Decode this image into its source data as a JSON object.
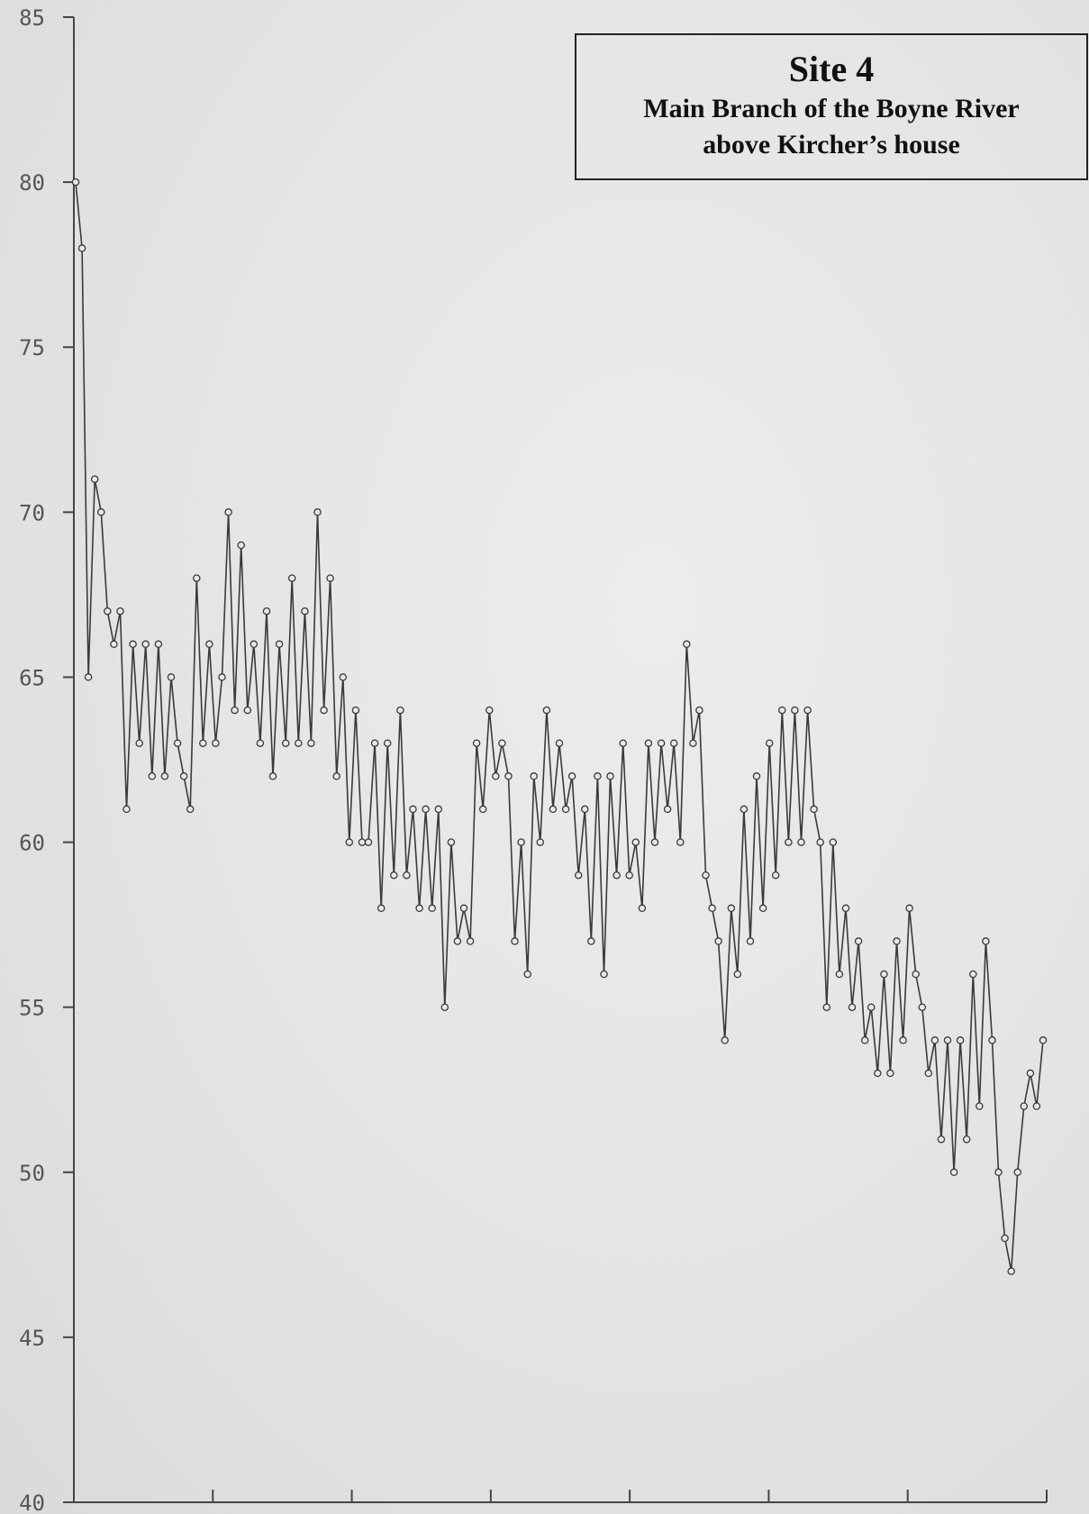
{
  "chart_data": {
    "type": "line",
    "title": "Site 4",
    "subtitle_lines": [
      "Main Branch of the Boyne River",
      "above Kircher’s house"
    ],
    "xlabel": "",
    "ylabel": "",
    "ylim": [
      40,
      85
    ],
    "y_ticks": [
      "85",
      "80",
      "75",
      "70",
      "65",
      "60",
      "55",
      "50",
      "45",
      "40"
    ],
    "x_ticks_count": 7,
    "grid": false,
    "legend": "none",
    "marker": "open-circle",
    "line_color": "#3a3a3a",
    "series": [
      {
        "values": [
          80,
          78,
          65,
          71,
          70,
          67,
          66,
          67,
          61,
          66,
          63,
          66,
          62,
          66,
          62,
          65,
          63,
          62,
          61,
          68,
          63,
          66,
          63,
          65,
          70,
          64,
          69,
          64,
          66,
          63,
          67,
          62,
          66,
          63,
          68,
          63,
          67,
          63,
          70,
          64,
          68,
          62,
          65,
          60,
          64,
          60,
          60,
          63,
          58,
          63,
          59,
          64,
          59,
          61,
          58,
          61,
          58,
          61,
          55,
          60,
          57,
          58,
          57,
          63,
          61,
          64,
          62,
          63,
          62,
          57,
          60,
          56,
          62,
          60,
          64,
          61,
          63,
          61,
          62,
          59,
          61,
          57,
          62,
          56,
          62,
          59,
          63,
          59,
          60,
          58,
          63,
          60,
          63,
          61,
          63,
          60,
          66,
          63,
          64,
          59,
          58,
          57,
          54,
          58,
          56,
          61,
          57,
          62,
          58,
          63,
          59,
          64,
          60,
          64,
          60,
          64,
          61,
          60,
          55,
          60,
          56,
          58,
          55,
          57,
          54,
          55,
          53,
          56,
          53,
          57,
          54,
          58,
          56,
          55,
          53,
          54,
          51,
          54,
          50,
          54,
          51,
          56,
          52,
          57,
          54,
          50,
          48,
          47,
          50,
          52,
          53,
          52,
          54
        ]
      }
    ]
  }
}
